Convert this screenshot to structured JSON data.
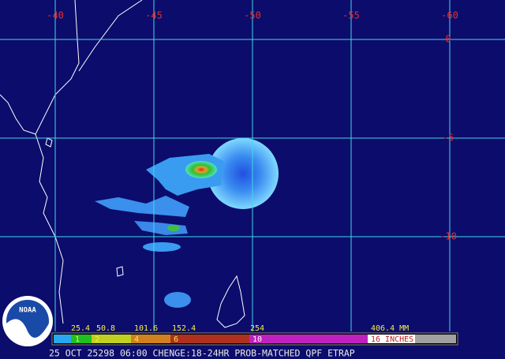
{
  "map": {
    "lon_labels": [
      "-40",
      "-45",
      "-50",
      "-55",
      "-60"
    ],
    "lat_labels": [
      "0",
      "-5",
      "-10"
    ],
    "logo": "NOAA"
  },
  "colorbar": {
    "mm_labels": [
      "25.4",
      "50.8",
      "101.6",
      "152.4",
      "254",
      "406.4 MM"
    ],
    "inch_labels": [
      "1",
      "2",
      "4",
      "6",
      "10",
      "16 INCHES"
    ]
  },
  "footer": "25 OCT 25298 06:00 CHENGE:18-24HR PROB-MATCHED QPF ETRAP"
}
